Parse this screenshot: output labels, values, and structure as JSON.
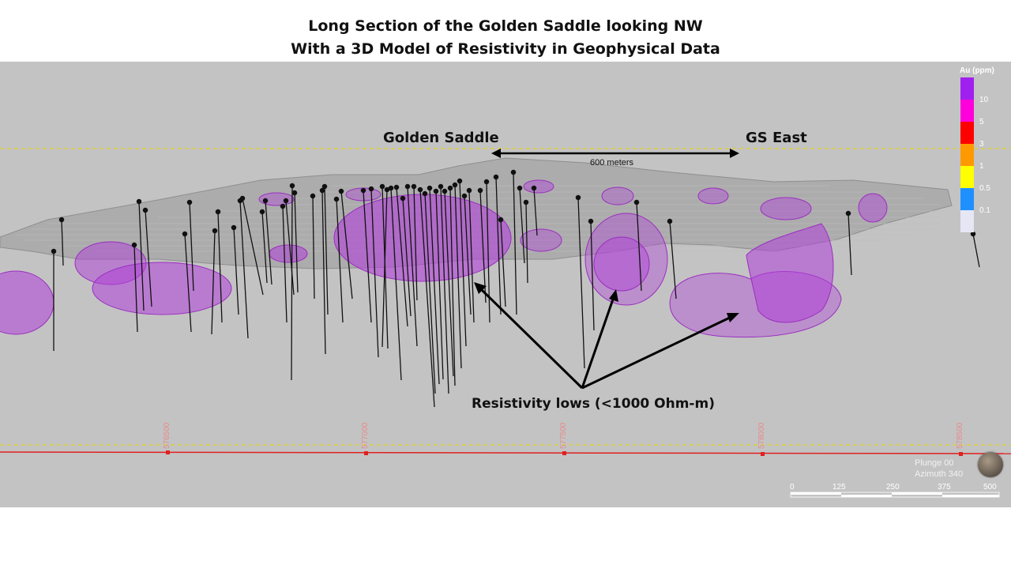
{
  "title": {
    "line1": "Long Section of the Golden Saddle looking NW",
    "line2": "With a 3D Model of Resistivity in Geophysical Data"
  },
  "labels": {
    "golden_saddle": "Golden Saddle",
    "gs_east": "GS East",
    "distance": "600 meters",
    "resistivity": "Resistivity lows (<1000 Ohm-m)"
  },
  "legend": {
    "title": "Au (ppm)",
    "entries": [
      {
        "value": "",
        "color": "#a020f0"
      },
      {
        "value": "10",
        "color": "#ff00dd"
      },
      {
        "value": "5",
        "color": "#ff0000"
      },
      {
        "value": "3",
        "color": "#ff9900"
      },
      {
        "value": "1",
        "color": "#ffff00"
      },
      {
        "value": "0.5",
        "color": "#1e90ff"
      },
      {
        "value": "0.1",
        "color": "#e6e6f5"
      }
    ]
  },
  "eastings": [
    "576500",
    "577000",
    "577500",
    "578000",
    "578500"
  ],
  "view": {
    "plunge": "Plunge 00",
    "azimuth": "Azimuth 340"
  },
  "scale_bar": {
    "labels": [
      "0",
      "125",
      "250",
      "375",
      "500"
    ]
  },
  "colors": {
    "resistivity_body": "#b040d8",
    "section_line": "#e02020",
    "guide_line": "#e8d400",
    "drillhole": "#111111"
  }
}
